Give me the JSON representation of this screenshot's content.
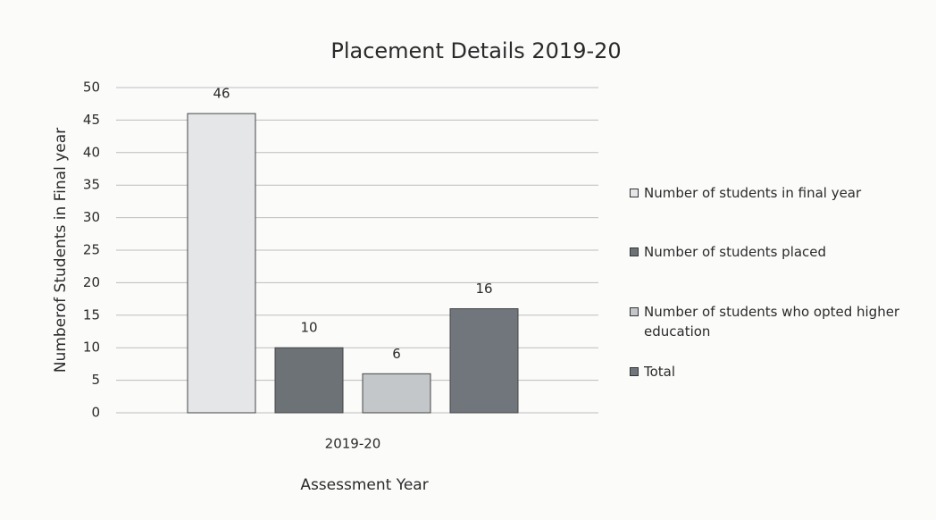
{
  "chart_data": {
    "type": "bar",
    "title": "Placement Details 2019-20",
    "x_label": "Assessment Year",
    "y_label": "Numberof Students in Final year",
    "categories": [
      "2019-20"
    ],
    "series": [
      {
        "name": "Number of students in final year",
        "color": "#e4e6e8",
        "values": [
          46
        ]
      },
      {
        "name": "Number of students placed",
        "color": "#6d7277",
        "values": [
          10
        ]
      },
      {
        "name": "Number of students who opted higher education",
        "color": "#c4c7ca",
        "values": [
          6
        ]
      },
      {
        "name": "Total",
        "color": "#71767c",
        "values": [
          16
        ]
      }
    ],
    "ylim": [
      0,
      50
    ],
    "yticks": [
      0,
      5,
      10,
      15,
      20,
      25,
      30,
      35,
      40,
      45,
      50
    ],
    "grid": true,
    "legend": "right"
  }
}
